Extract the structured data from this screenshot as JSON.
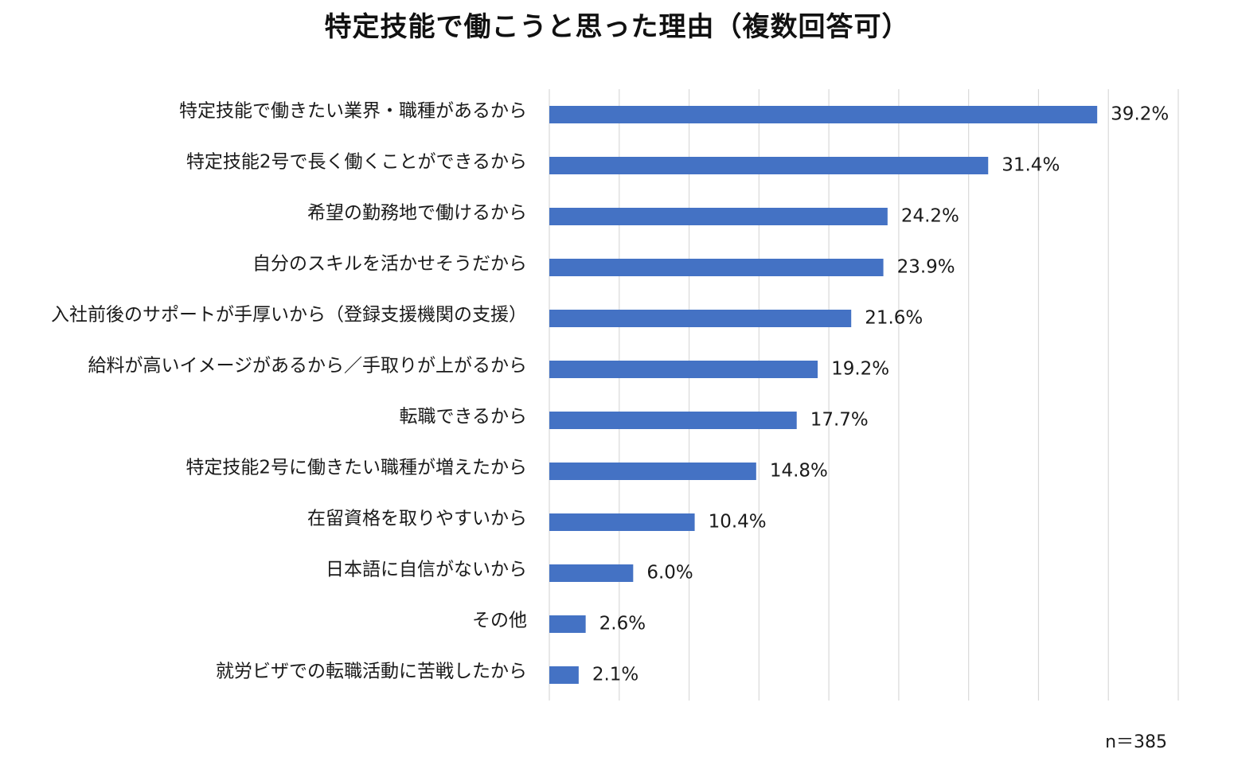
{
  "chart_data": {
    "type": "bar",
    "orientation": "horizontal",
    "title": "特定技能で働こうと思った理由（複数回答可）",
    "categories": [
      "特定技能で働きたい業界・職種があるから",
      "特定技能2号で長く働くことができるから",
      "希望の勤務地で働けるから",
      "自分のスキルを活かせそうだから",
      "入社前後のサポートが手厚いから（登録支援機関の支援）",
      "給料が高いイメージがあるから／手取りが上がるから",
      "転職できるから",
      "特定技能2号に働きたい職種が増えたから",
      "在留資格を取りやすいから",
      "日本語に自信がないから",
      "その他",
      "就労ビザでの転職活動に苦戦したから"
    ],
    "values": [
      39.2,
      31.4,
      24.2,
      23.9,
      21.6,
      19.2,
      17.7,
      14.8,
      10.4,
      6.0,
      2.6,
      2.1
    ],
    "value_labels": [
      "39.2%",
      "31.4%",
      "24.2%",
      "23.9%",
      "21.6%",
      "19.2%",
      "17.7%",
      "14.8%",
      "10.4%",
      "6.0%",
      "2.6%",
      "2.1%"
    ],
    "unit": "%",
    "xlim": [
      0,
      45
    ],
    "gridline_step": 5,
    "grid": true,
    "xlabel": "",
    "ylabel": "",
    "legend": "none",
    "bar_color": "#4472C4",
    "grid_color": "#d9d9d9",
    "note": "n＝385"
  }
}
